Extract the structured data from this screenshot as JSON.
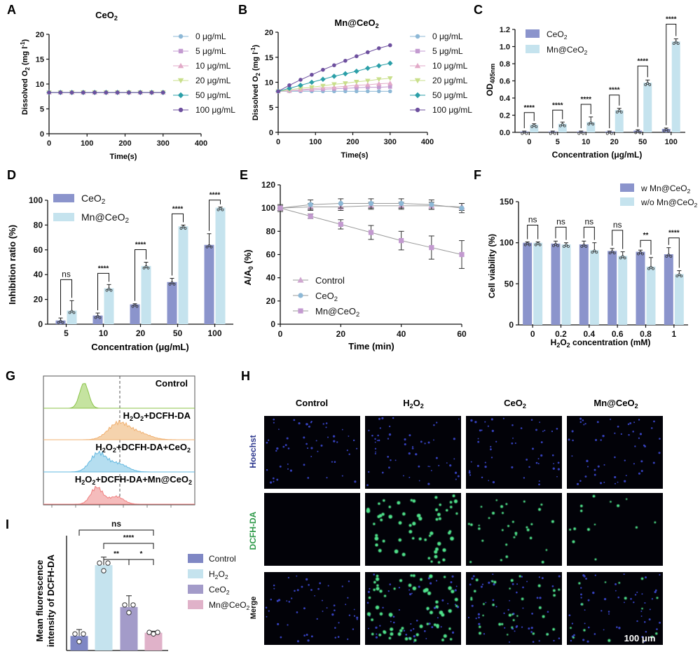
{
  "colors": {
    "ceo2_dark": "#8b94cc",
    "mn_light": "#c5e3ee",
    "ctrl": "#cfa6d0",
    "c0": "#8db8d6",
    "c5": "#c39ad0",
    "c10": "#e2aac8",
    "c20": "#c9df8b",
    "c50": "#2b9fa8",
    "c100": "#6d4f9e",
    "flow_green": "#8bc34a",
    "flow_orange": "#f0b070",
    "flow_blue": "#63b8e0",
    "flow_red": "#ef8080",
    "i_ctrl": "#7f87c4",
    "i_h2o2": "#c5e3ee",
    "i_ceo2": "#a39bc9",
    "i_mn": "#e0b2c9"
  },
  "panels": {
    "A": "A",
    "B": "B",
    "C": "C",
    "D": "D",
    "E": "E",
    "F": "F",
    "G": "G",
    "H": "H",
    "I": "I"
  },
  "chart_data": [
    {
      "id": "A",
      "type": "line",
      "title": "CeO2",
      "xlabel": "Time(s)",
      "ylabel": "Dissolved O2 (mg l-1)",
      "xlim": [
        0,
        400
      ],
      "ylim": [
        0,
        20
      ],
      "xticks": [
        0,
        100,
        200,
        300,
        400
      ],
      "yticks": [
        0,
        5,
        10,
        15,
        20
      ],
      "x": [
        0,
        30,
        60,
        90,
        120,
        150,
        180,
        210,
        240,
        270,
        300
      ],
      "series": [
        {
          "name": "0 μg/mL",
          "values": [
            8.3,
            8.3,
            8.3,
            8.3,
            8.3,
            8.3,
            8.3,
            8.3,
            8.3,
            8.3,
            8.3
          ]
        },
        {
          "name": "5 μg/mL",
          "values": [
            8.3,
            8.3,
            8.3,
            8.3,
            8.3,
            8.3,
            8.3,
            8.3,
            8.3,
            8.3,
            8.3
          ]
        },
        {
          "name": "10 μg/mL",
          "values": [
            8.3,
            8.3,
            8.3,
            8.3,
            8.3,
            8.3,
            8.3,
            8.3,
            8.3,
            8.3,
            8.3
          ]
        },
        {
          "name": "20 μg/mL",
          "values": [
            8.3,
            8.3,
            8.3,
            8.3,
            8.3,
            8.3,
            8.3,
            8.3,
            8.3,
            8.3,
            8.3
          ]
        },
        {
          "name": "50 μg/mL",
          "values": [
            8.3,
            8.3,
            8.3,
            8.3,
            8.3,
            8.3,
            8.3,
            8.3,
            8.3,
            8.3,
            8.3
          ]
        },
        {
          "name": "100 μg/mL",
          "values": [
            8.3,
            8.3,
            8.3,
            8.3,
            8.3,
            8.3,
            8.3,
            8.3,
            8.3,
            8.3,
            8.3
          ]
        }
      ]
    },
    {
      "id": "B",
      "type": "line",
      "title": "Mn@CeO2",
      "xlabel": "Time(s)",
      "ylabel": "Dissolved O2 (mg l-1)",
      "xlim": [
        0,
        400
      ],
      "ylim": [
        0,
        20
      ],
      "xticks": [
        0,
        100,
        200,
        300,
        400
      ],
      "yticks": [
        0,
        5,
        10,
        15,
        20
      ],
      "x": [
        0,
        30,
        60,
        90,
        120,
        150,
        180,
        210,
        240,
        270,
        300
      ],
      "series": [
        {
          "name": "0 μg/mL",
          "values": [
            8.2,
            8.2,
            8.2,
            8.2,
            8.2,
            8.2,
            8.2,
            8.2,
            8.2,
            8.2,
            8.2
          ]
        },
        {
          "name": "5 μg/mL",
          "values": [
            8.2,
            8.3,
            8.4,
            8.5,
            8.6,
            8.7,
            8.8,
            8.9,
            9.0,
            9.0,
            9.1
          ]
        },
        {
          "name": "10 μg/mL",
          "values": [
            8.2,
            8.3,
            8.5,
            8.7,
            8.9,
            9.0,
            9.2,
            9.4,
            9.5,
            9.7,
            9.8
          ]
        },
        {
          "name": "20 μg/mL",
          "values": [
            8.2,
            8.5,
            8.8,
            9.0,
            9.3,
            9.6,
            9.8,
            10.1,
            10.3,
            10.6,
            10.8
          ]
        },
        {
          "name": "50 μg/mL",
          "values": [
            8.2,
            8.8,
            9.4,
            10.0,
            10.6,
            11.2,
            11.7,
            12.2,
            12.8,
            13.3,
            13.8
          ]
        },
        {
          "name": "100 μg/mL",
          "values": [
            8.2,
            9.4,
            10.5,
            11.5,
            12.5,
            13.4,
            14.3,
            15.2,
            16.0,
            16.8,
            17.4
          ]
        }
      ]
    },
    {
      "id": "C",
      "type": "bar",
      "ylabel": "OD405nm",
      "xlabel": "Concentration (μg/mL)",
      "categories": [
        "0",
        "5",
        "10",
        "20",
        "50",
        "100"
      ],
      "ylim": [
        0,
        1.2
      ],
      "yticks": [
        "0.0",
        "0.2",
        "0.4",
        "0.6",
        "0.8",
        "1.0",
        "1.2"
      ],
      "series": [
        {
          "name": "CeO2",
          "values": [
            0.01,
            0.01,
            0.01,
            0.01,
            0.02,
            0.04
          ],
          "err": [
            0.005,
            0.005,
            0.005,
            0.005,
            0.01,
            0.01
          ]
        },
        {
          "name": "Mn@CeO2",
          "values": [
            0.09,
            0.1,
            0.12,
            0.26,
            0.58,
            1.06
          ],
          "err": [
            0.01,
            0.02,
            0.06,
            0.02,
            0.03,
            0.03
          ]
        }
      ],
      "sig": [
        "****",
        "****",
        "****",
        "****",
        "****",
        "****"
      ]
    },
    {
      "id": "D",
      "type": "bar",
      "ylabel": "Inhibition ratio (%)",
      "xlabel": "Concentration (μg/mL)",
      "categories": [
        "5",
        "10",
        "20",
        "50",
        "100"
      ],
      "ylim": [
        0,
        100
      ],
      "yticks": [
        "0",
        "20",
        "40",
        "60",
        "80",
        "100"
      ],
      "series": [
        {
          "name": "CeO2",
          "values": [
            3,
            7,
            16,
            34,
            64
          ],
          "err": [
            2,
            2,
            0.5,
            3,
            9
          ]
        },
        {
          "name": "Mn@CeO2",
          "values": [
            11,
            29,
            47,
            79,
            94
          ],
          "err": [
            8,
            3,
            3,
            1,
            0.5
          ]
        }
      ],
      "sig": [
        "ns",
        "****",
        "****",
        "****",
        "****"
      ]
    },
    {
      "id": "E",
      "type": "line",
      "ylabel": "A/A0 (%)",
      "xlabel": "Time (min)",
      "xlim": [
        0,
        60
      ],
      "ylim": [
        0,
        120
      ],
      "xticks": [
        "0",
        "20",
        "40",
        "60"
      ],
      "yticks": [
        "0",
        "20",
        "40",
        "60",
        "80",
        "100",
        "120"
      ],
      "x": [
        0,
        10,
        20,
        30,
        40,
        50,
        60
      ],
      "series": [
        {
          "name": "Control",
          "values": [
            100,
            101,
            101,
            102,
            102,
            102,
            101
          ],
          "err": [
            2,
            3,
            3,
            3,
            3,
            3,
            3
          ]
        },
        {
          "name": "CeO2",
          "values": [
            100,
            103,
            104,
            104,
            104,
            103,
            100
          ],
          "err": [
            3,
            4,
            4,
            4,
            4,
            4,
            4
          ]
        },
        {
          "name": "Mn@CeO2",
          "values": [
            100,
            93,
            86,
            79,
            72,
            66,
            60
          ],
          "err": [
            2,
            2,
            4,
            6,
            8,
            10,
            12
          ]
        }
      ]
    },
    {
      "id": "F",
      "type": "bar",
      "ylabel": "Cell viability (%)",
      "xlabel": "H2O2 concentration (mM)",
      "categories": [
        "0",
        "0.2",
        "0.4",
        "0.6",
        "0.8",
        "1"
      ],
      "ylim": [
        0,
        150
      ],
      "yticks": [
        "0",
        "50",
        "100",
        "150"
      ],
      "series": [
        {
          "name": "w Mn@CeO2",
          "values": [
            100,
            99,
            98,
            90,
            89,
            86
          ],
          "err": [
            1,
            3,
            4,
            3,
            2,
            8
          ]
        },
        {
          "name": "w/o Mn@CeO2",
          "values": [
            100,
            98,
            91,
            84,
            71,
            62
          ],
          "err": [
            1,
            2,
            9,
            5,
            11,
            4
          ]
        }
      ],
      "sig": [
        "ns",
        "ns",
        "ns",
        "ns",
        "**",
        "****"
      ]
    },
    {
      "id": "G",
      "type": "histogram",
      "rows": [
        "Control",
        "H2O2+DCFH-DA",
        "H2O2+DCFH-DA+CeO2",
        "H2O2+DCFH-DA+Mn@CeO2"
      ]
    },
    {
      "id": "H",
      "type": "image-grid",
      "columns": [
        "Control",
        "H2O2",
        "CeO2",
        "Mn@CeO2"
      ],
      "rows": [
        "Hoechst",
        "DCFH-DA",
        "Merge"
      ],
      "scale_bar": "100 μm"
    },
    {
      "id": "I",
      "type": "bar",
      "ylabel": "Mean fluorescence intensity of DCFH-DA",
      "categories": [
        "Control",
        "H2O2",
        "CeO2",
        "Mn@CeO2"
      ],
      "values": [
        4.5,
        26.5,
        13.5,
        5.5
      ],
      "err": [
        2,
        2.5,
        3.5,
        0.5
      ],
      "ylim": [
        0,
        40
      ],
      "brackets": [
        {
          "from": 0,
          "to": 3,
          "label": "ns"
        },
        {
          "from": 1,
          "to": 3,
          "label": "****"
        },
        {
          "from": 1,
          "to": 2,
          "label": "**"
        },
        {
          "from": 2,
          "to": 3,
          "label": "*"
        }
      ],
      "legend": [
        "Control",
        "H2O2",
        "CeO2",
        "Mn@CeO2"
      ]
    }
  ]
}
